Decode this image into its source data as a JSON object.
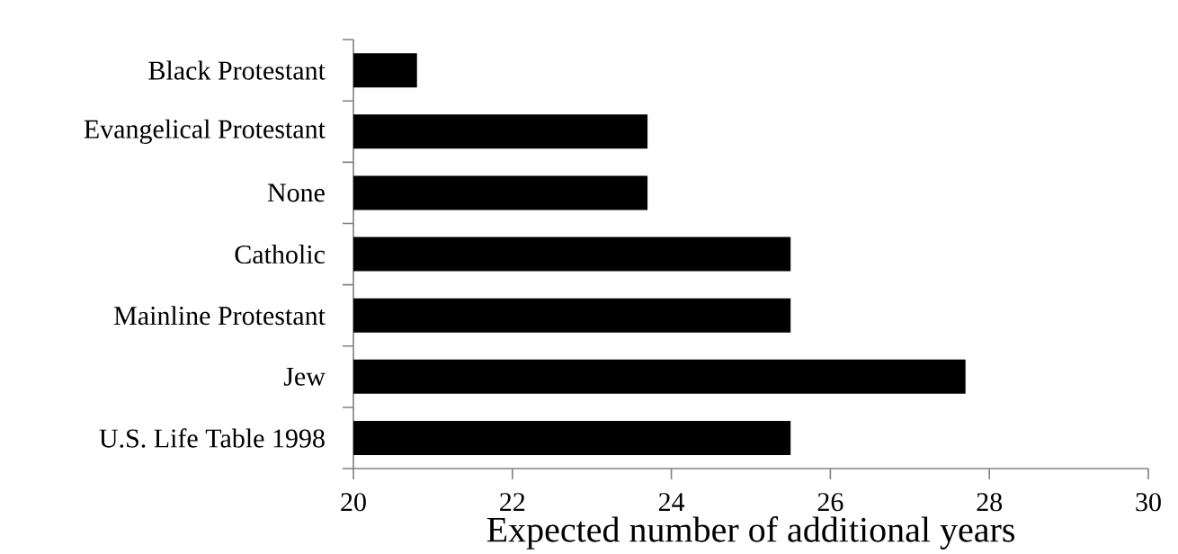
{
  "chart_data": {
    "type": "bar",
    "orientation": "horizontal",
    "categories": [
      "Black Protestant",
      "Evangelical Protestant",
      "None",
      "Catholic",
      "Mainline Protestant",
      "Jew",
      "U.S. Life Table 1998"
    ],
    "values": [
      20.8,
      23.7,
      23.7,
      25.5,
      25.5,
      27.7,
      25.5
    ],
    "color": "#000000",
    "xlim": [
      20,
      30
    ],
    "xticks": [
      20,
      22,
      24,
      26,
      28,
      30
    ],
    "xlabel": "Expected number of additional years"
  }
}
